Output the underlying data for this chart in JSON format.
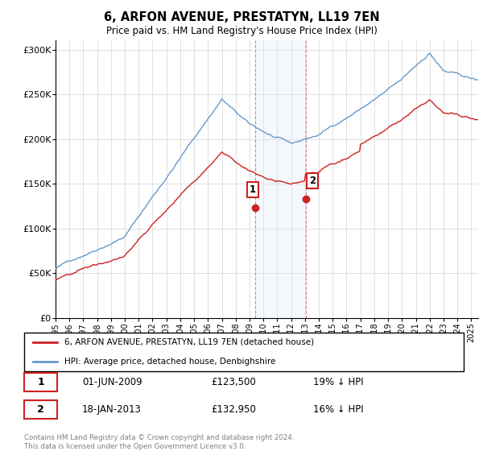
{
  "title": "6, ARFON AVENUE, PRESTATYN, LL19 7EN",
  "subtitle": "Price paid vs. HM Land Registry's House Price Index (HPI)",
  "hpi_color": "#6699cc",
  "price_color": "#cc2222",
  "shading_color": "#dce9f5",
  "ylabel_values": [
    "£0",
    "£50K",
    "£100K",
    "£150K",
    "£200K",
    "£250K",
    "£300K"
  ],
  "yticks": [
    0,
    50000,
    100000,
    150000,
    200000,
    250000,
    300000
  ],
  "ylim": [
    0,
    310000
  ],
  "legend_line1": "6, ARFON AVENUE, PRESTATYN, LL19 7EN (detached house)",
  "legend_line2": "HPI: Average price, detached house, Denbighshire",
  "annotation1_date": "01-JUN-2009",
  "annotation1_price": "£123,500",
  "annotation1_pct": "19% ↓ HPI",
  "annotation1_value": 123500,
  "annotation1_year": 2009.42,
  "annotation2_date": "18-JAN-2013",
  "annotation2_price": "£132,950",
  "annotation2_pct": "16% ↓ HPI",
  "annotation2_value": 132950,
  "annotation2_year": 2013.05,
  "footer": "Contains HM Land Registry data © Crown copyright and database right 2024.\nThis data is licensed under the Open Government Licence v3.0."
}
